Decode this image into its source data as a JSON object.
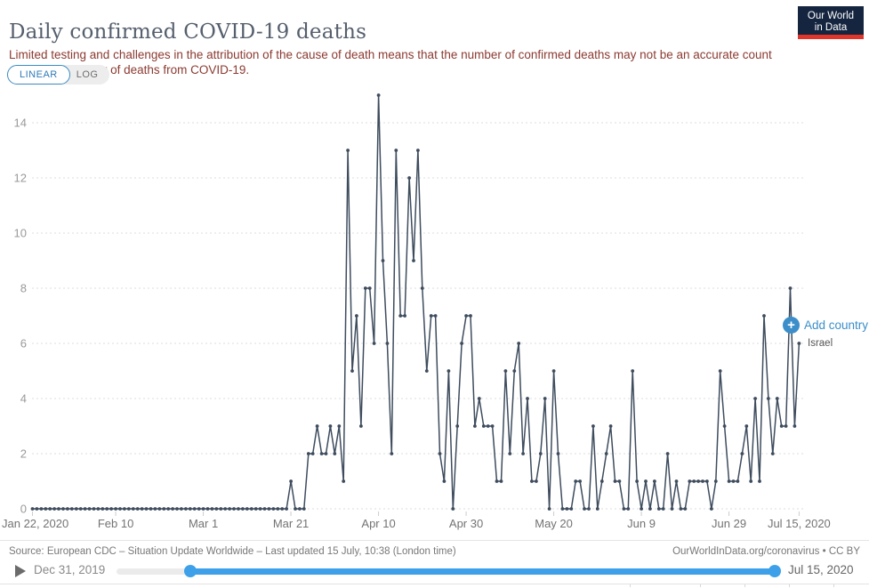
{
  "header": {
    "title": "Daily confirmed COVID-19 deaths",
    "subtitle": "Limited testing and challenges in the attribution of the cause of death means that the number of confirmed deaths may not be an accurate count of the true number of deaths from COVID-19.",
    "logo": {
      "line1": "Our World",
      "line2": "in Data"
    }
  },
  "controls": {
    "linear_label": "LINEAR",
    "log_label": "LOG"
  },
  "annotations": {
    "add_country_label": "Add country"
  },
  "chart_data": {
    "type": "line",
    "title": "Daily confirmed COVID-19 deaths",
    "xlabel": "",
    "ylabel": "",
    "ylim": [
      0,
      15
    ],
    "y_ticks": [
      0,
      2,
      4,
      6,
      8,
      10,
      12,
      14
    ],
    "x_start_date": "Jan 22, 2020",
    "x_end_date": "Jul 15, 2020",
    "x_days_total": 175,
    "x_tick_labels": [
      "Jan 22, 2020",
      "Feb 10",
      "Mar 1",
      "Mar 21",
      "Apr 10",
      "Apr 30",
      "May 20",
      "Jun 9",
      "Jun 29",
      "Jul 15, 2020"
    ],
    "x_tick_days": [
      0,
      19,
      39,
      59,
      79,
      99,
      119,
      139,
      159,
      175
    ],
    "grid": true,
    "legend_position": "end-of-line",
    "line_color": "#3e4c5e",
    "series": [
      {
        "name": "Israel",
        "values": [
          0,
          0,
          0,
          0,
          0,
          0,
          0,
          0,
          0,
          0,
          0,
          0,
          0,
          0,
          0,
          0,
          0,
          0,
          0,
          0,
          0,
          0,
          0,
          0,
          0,
          0,
          0,
          0,
          0,
          0,
          0,
          0,
          0,
          0,
          0,
          0,
          0,
          0,
          0,
          0,
          0,
          0,
          0,
          0,
          0,
          0,
          0,
          0,
          0,
          0,
          0,
          0,
          0,
          0,
          0,
          0,
          0,
          0,
          0,
          1,
          0,
          0,
          0,
          2,
          2,
          3,
          2,
          2,
          3,
          2,
          3,
          1,
          13,
          5,
          7,
          3,
          8,
          8,
          6,
          15,
          9,
          6,
          2,
          13,
          7,
          7,
          12,
          9,
          13,
          8,
          5,
          7,
          7,
          2,
          1,
          5,
          0,
          3,
          6,
          7,
          7,
          3,
          4,
          3,
          3,
          3,
          1,
          1,
          5,
          2,
          5,
          6,
          2,
          4,
          1,
          1,
          2,
          4,
          0,
          5,
          2,
          0,
          0,
          0,
          1,
          1,
          0,
          0,
          3,
          0,
          1,
          2,
          3,
          1,
          1,
          0,
          0,
          5,
          1,
          0,
          1,
          0,
          1,
          0,
          0,
          2,
          0,
          1,
          0,
          0,
          1,
          1,
          1,
          1,
          1,
          0,
          1,
          5,
          3,
          1,
          1,
          1,
          2,
          3,
          1,
          4,
          1,
          7,
          4,
          2,
          4,
          3,
          3,
          8,
          3,
          6
        ]
      }
    ]
  },
  "footer": {
    "source": "Source: European CDC – Situation Update Worldwide – Last updated 15 July, 10:38 (London time)",
    "attribution": "OurWorldInData.org/coronavirus • CC BY"
  },
  "timeline": {
    "start_label": "Dec 31, 2019",
    "end_label": "Jul 15, 2020"
  },
  "colors": {
    "title": "#555f6d",
    "subtitle": "#8b3a31",
    "line": "#3e4c5e",
    "accent_blue": "#3b8ec9",
    "slider_blue": "#3da0e8",
    "logo_navy": "#15253f",
    "logo_red": "#e0352b"
  }
}
